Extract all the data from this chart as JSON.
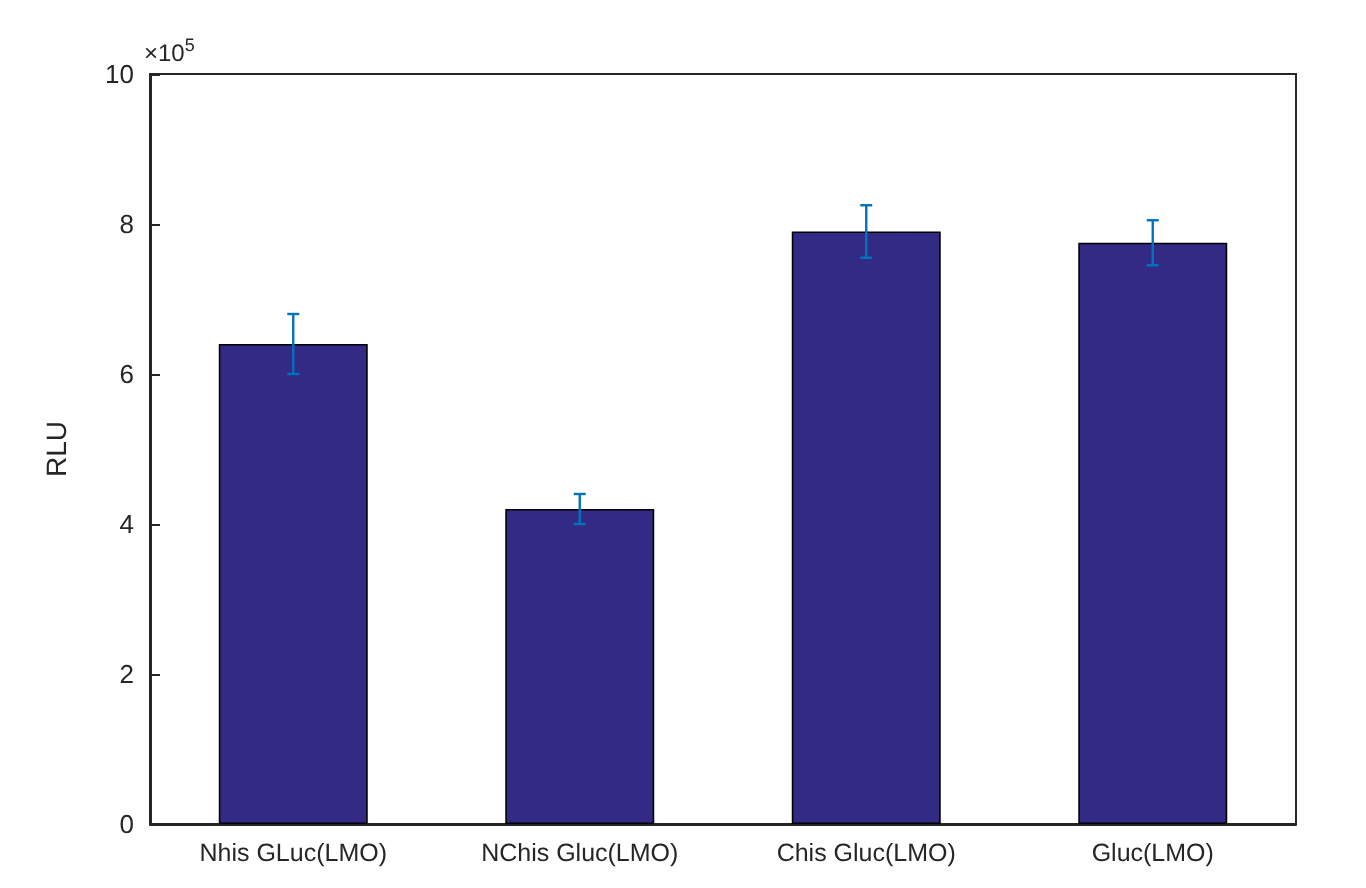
{
  "chart_data": {
    "type": "bar",
    "ylabel": "RLU",
    "annotations": [
      "×10$^{5}$"
    ],
    "categories": [
      "Nhis GLuc(LMO)",
      "NChis Gluc(LMO)",
      "Chis Gluc(LMO)",
      "Gluc(LMO)"
    ],
    "values": [
      6.4,
      4.2,
      7.9,
      7.75
    ],
    "errors": [
      0.4,
      0.2,
      0.35,
      0.3
    ],
    "color": "#332a86",
    "ylim": [
      0,
      10
    ],
    "yticks": [
      0,
      2,
      4,
      6,
      8,
      10
    ],
    "grid": false
  }
}
